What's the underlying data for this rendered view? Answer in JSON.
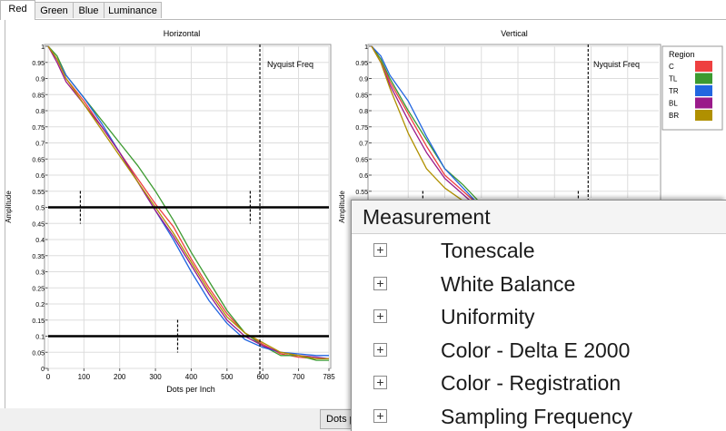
{
  "tabs": [
    {
      "label": "Red",
      "active": true
    },
    {
      "label": "Green",
      "active": false
    },
    {
      "label": "Blue",
      "active": false
    },
    {
      "label": "Luminance",
      "active": false
    }
  ],
  "legend": {
    "title": "Region",
    "items": [
      {
        "label": "C",
        "color": "#ee4040"
      },
      {
        "label": "TL",
        "color": "#3c9a30"
      },
      {
        "label": "TR",
        "color": "#2266e0"
      },
      {
        "label": "BL",
        "color": "#9a1a8a"
      },
      {
        "label": "BR",
        "color": "#b09000"
      }
    ]
  },
  "nyquist_label": "Nyquist Freq",
  "bottom_button": "Dots per Inch",
  "measurement_panel": {
    "header": "Measurement",
    "items": [
      "Tonescale",
      "White Balance",
      "Uniformity",
      "Color - Delta E 2000",
      "Color - Registration",
      "Sampling Frequency"
    ]
  },
  "chart_data": [
    {
      "type": "line",
      "title": "Horizontal",
      "xlabel": "Dots per Inch",
      "ylabel": "Amplitude",
      "xlim": [
        0,
        785
      ],
      "ylim": [
        0,
        1
      ],
      "xticks": [
        0,
        100,
        200,
        300,
        400,
        500,
        600,
        700,
        785
      ],
      "yticks": [
        "0",
        "0.05",
        "0.1",
        "0.15",
        "0.2",
        "0.25",
        "0.3",
        "0.35",
        "0.4",
        "0.45",
        "0.5",
        "0.55",
        "0.6",
        "0.65",
        "0.7",
        "0.75",
        "0.8",
        "0.85",
        "0.9",
        "0.95",
        "1"
      ],
      "grid": true,
      "nyquist_x": 592,
      "threshold_lines": [
        0.5,
        0.1
      ],
      "markers": [
        {
          "x": 90,
          "y": 0.5
        },
        {
          "x": 565,
          "y": 0.5
        },
        {
          "x": 362,
          "y": 0.1
        }
      ],
      "x": [
        0,
        25,
        50,
        100,
        150,
        200,
        250,
        300,
        350,
        400,
        450,
        500,
        550,
        600,
        650,
        700,
        750,
        785
      ],
      "series": [
        {
          "name": "C",
          "values": [
            1,
            0.96,
            0.9,
            0.83,
            0.75,
            0.67,
            0.59,
            0.51,
            0.44,
            0.34,
            0.25,
            0.17,
            0.11,
            0.075,
            0.045,
            0.035,
            0.03,
            0.03
          ]
        },
        {
          "name": "TL",
          "values": [
            1,
            0.97,
            0.91,
            0.84,
            0.77,
            0.7,
            0.63,
            0.55,
            0.46,
            0.36,
            0.27,
            0.18,
            0.11,
            0.07,
            0.04,
            0.04,
            0.025,
            0.025
          ]
        },
        {
          "name": "TR",
          "values": [
            1,
            0.96,
            0.91,
            0.84,
            0.76,
            0.67,
            0.58,
            0.49,
            0.4,
            0.3,
            0.21,
            0.14,
            0.09,
            0.065,
            0.05,
            0.045,
            0.04,
            0.04
          ]
        },
        {
          "name": "BL",
          "values": [
            1,
            0.95,
            0.89,
            0.82,
            0.75,
            0.67,
            0.58,
            0.49,
            0.41,
            0.32,
            0.23,
            0.15,
            0.1,
            0.07,
            0.05,
            0.04,
            0.035,
            0.03
          ]
        },
        {
          "name": "BR",
          "values": [
            1,
            0.96,
            0.9,
            0.82,
            0.74,
            0.66,
            0.58,
            0.5,
            0.42,
            0.33,
            0.24,
            0.16,
            0.11,
            0.08,
            0.05,
            0.04,
            0.03,
            0.03
          ]
        }
      ]
    },
    {
      "type": "line",
      "title": "Vertical",
      "xlabel": "",
      "ylabel": "Amplitude",
      "xlim": [
        0,
        785
      ],
      "ylim": [
        0,
        1
      ],
      "yticks": [
        "0.55",
        "0.6",
        "0.65",
        "0.7",
        "0.75",
        "0.8",
        "0.85",
        "0.9",
        "0.95",
        "1"
      ],
      "grid": true,
      "nyquist_x": 592,
      "threshold_lines": [
        0.5
      ],
      "markers": [
        {
          "x": 140,
          "y": 0.5
        },
        {
          "x": 565,
          "y": 0.5
        }
      ],
      "x": [
        0,
        25,
        50,
        100,
        150,
        200,
        250,
        300,
        350,
        400
      ],
      "series": [
        {
          "name": "C",
          "values": [
            1,
            0.96,
            0.89,
            0.79,
            0.69,
            0.6,
            0.55,
            0.5,
            0.44,
            0.38
          ]
        },
        {
          "name": "TL",
          "values": [
            1,
            0.96,
            0.9,
            0.8,
            0.71,
            0.62,
            0.57,
            0.51,
            0.44,
            0.37
          ]
        },
        {
          "name": "TR",
          "values": [
            1,
            0.97,
            0.91,
            0.83,
            0.72,
            0.62,
            0.56,
            0.5,
            0.43,
            0.37
          ]
        },
        {
          "name": "BL",
          "values": [
            1,
            0.95,
            0.88,
            0.77,
            0.67,
            0.59,
            0.54,
            0.49,
            0.43,
            0.37
          ]
        },
        {
          "name": "BR",
          "values": [
            1,
            0.95,
            0.87,
            0.73,
            0.62,
            0.56,
            0.52,
            0.48,
            0.42,
            0.36
          ]
        }
      ]
    }
  ]
}
